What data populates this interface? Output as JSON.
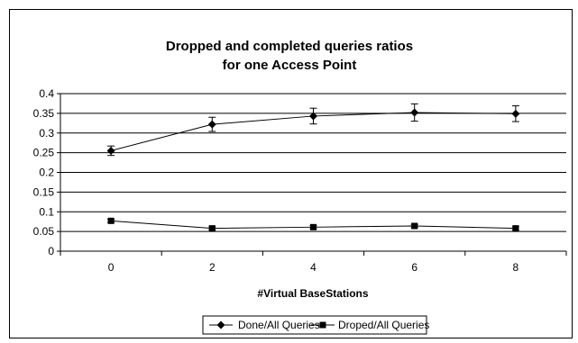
{
  "chart_data": {
    "type": "line",
    "title_line1": "Dropped and completed queries ratios",
    "title_line2": "for one Access Point",
    "xlabel": "#Virtual BaseStations",
    "ylabel": "",
    "x": [
      0,
      2,
      4,
      6,
      8
    ],
    "ylim": [
      0,
      0.4
    ],
    "ytick_step": 0.05,
    "yticks": [
      "0",
      "0.05",
      "0.1",
      "0.15",
      "0.2",
      "0.25",
      "0.3",
      "0.35",
      "0.4"
    ],
    "xticks": [
      "0",
      "2",
      "4",
      "6",
      "8"
    ],
    "grid": "horizontal",
    "legend_position": "bottom",
    "series": [
      {
        "name": "Done/All Queries",
        "marker": "diamond",
        "values": [
          0.255,
          0.322,
          0.343,
          0.352,
          0.349
        ],
        "error": [
          0.012,
          0.018,
          0.02,
          0.022,
          0.02
        ]
      },
      {
        "name": "Droped/All Queries",
        "marker": "square",
        "values": [
          0.077,
          0.058,
          0.061,
          0.064,
          0.058
        ],
        "error": [
          0.004,
          0.004,
          0.004,
          0.004,
          0.004
        ]
      }
    ],
    "colors": {
      "line": "#000000",
      "background": "#ffffff"
    }
  }
}
